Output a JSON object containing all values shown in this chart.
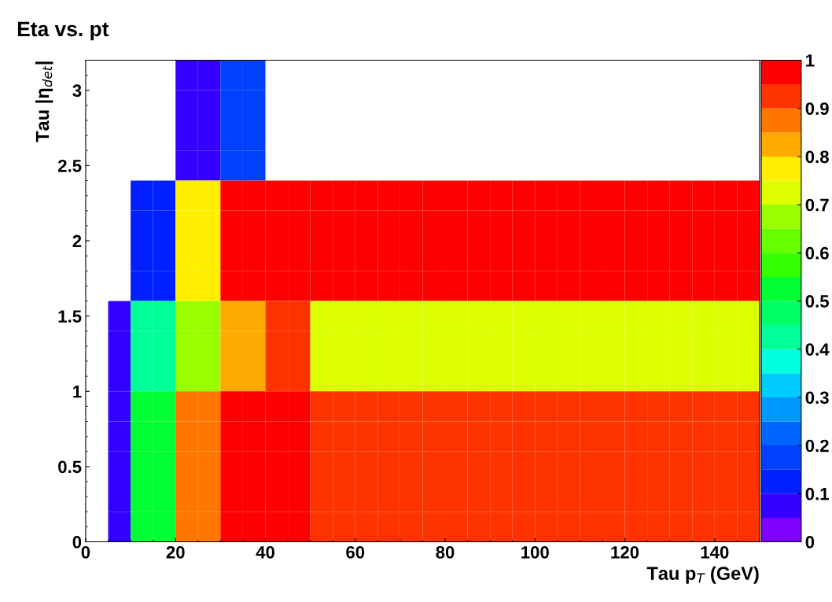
{
  "chart_data": {
    "type": "heatmap",
    "title": "Eta vs. pt",
    "xlabel": "Tau p$_{T}$ (GeV)",
    "ylabel": "Tau |η$_{det}$|",
    "x": [
      2.5,
      7.5,
      12.5,
      17.5,
      22.5,
      27.5,
      32.5,
      37.5,
      42.5,
      47.5,
      52.5,
      57.5,
      62.5,
      67.5,
      72.5,
      77.5,
      82.5,
      87.5,
      92.5,
      97.5,
      102.5,
      107.5,
      112.5,
      117.5,
      122.5,
      127.5,
      132.5,
      137.5,
      142.5,
      147.5
    ],
    "y": [
      3.1,
      2.9,
      2.7,
      2.5,
      2.3,
      2.1,
      1.9,
      1.7,
      1.5,
      1.3,
      1.1,
      0.9,
      0.7,
      0.5,
      0.3,
      0.1
    ],
    "cells": [
      [
        null,
        null,
        null,
        null,
        0.08,
        0.08,
        0.18,
        0.18,
        null,
        null,
        null,
        null,
        null,
        null,
        null,
        null,
        null,
        null,
        null,
        null,
        null,
        null,
        null,
        null,
        null,
        null,
        null,
        null,
        null,
        null
      ],
      [
        null,
        null,
        null,
        null,
        0.08,
        0.08,
        0.18,
        0.18,
        null,
        null,
        null,
        null,
        null,
        null,
        null,
        null,
        null,
        null,
        null,
        null,
        null,
        null,
        null,
        null,
        null,
        null,
        null,
        null,
        null,
        null
      ],
      [
        null,
        null,
        null,
        null,
        0.08,
        0.08,
        0.18,
        0.18,
        null,
        null,
        null,
        null,
        null,
        null,
        null,
        null,
        null,
        null,
        null,
        null,
        null,
        null,
        null,
        null,
        null,
        null,
        null,
        null,
        null,
        null
      ],
      [
        null,
        null,
        null,
        null,
        0.08,
        0.08,
        0.18,
        0.18,
        null,
        null,
        null,
        null,
        null,
        null,
        null,
        null,
        null,
        null,
        null,
        null,
        null,
        null,
        null,
        null,
        null,
        null,
        null,
        null,
        null,
        null
      ],
      [
        null,
        null,
        0.13,
        0.13,
        0.77,
        0.77,
        0.97,
        0.97,
        0.97,
        0.97,
        0.97,
        0.97,
        0.97,
        0.97,
        0.97,
        0.97,
        0.97,
        0.97,
        0.97,
        0.97,
        0.97,
        0.97,
        0.97,
        0.97,
        0.97,
        0.97,
        0.97,
        0.97,
        0.97,
        0.97
      ],
      [
        null,
        null,
        0.13,
        0.13,
        0.77,
        0.77,
        0.97,
        0.97,
        0.97,
        0.97,
        0.97,
        0.97,
        0.97,
        0.97,
        0.97,
        0.97,
        0.97,
        0.97,
        0.97,
        0.97,
        0.97,
        0.97,
        0.97,
        0.97,
        0.97,
        0.97,
        0.97,
        0.97,
        0.97,
        0.97
      ],
      [
        null,
        null,
        0.13,
        0.13,
        0.77,
        0.77,
        0.97,
        0.97,
        0.97,
        0.97,
        0.97,
        0.97,
        0.97,
        0.97,
        0.97,
        0.97,
        0.97,
        0.97,
        0.97,
        0.97,
        0.97,
        0.97,
        0.97,
        0.97,
        0.97,
        0.97,
        0.97,
        0.97,
        0.97,
        0.97
      ],
      [
        null,
        null,
        0.13,
        0.13,
        0.77,
        0.77,
        0.97,
        0.97,
        0.97,
        0.97,
        0.97,
        0.97,
        0.97,
        0.97,
        0.97,
        0.97,
        0.97,
        0.97,
        0.97,
        0.97,
        0.97,
        0.97,
        0.97,
        0.97,
        0.97,
        0.97,
        0.97,
        0.97,
        0.97,
        0.97
      ],
      [
        null,
        0.08,
        0.42,
        0.42,
        0.67,
        0.67,
        0.82,
        0.82,
        0.92,
        0.92,
        0.72,
        0.72,
        0.72,
        0.72,
        0.72,
        0.72,
        0.72,
        0.72,
        0.72,
        0.72,
        0.72,
        0.72,
        0.72,
        0.72,
        0.72,
        0.72,
        0.72,
        0.72,
        0.72,
        0.72
      ],
      [
        null,
        0.08,
        0.42,
        0.42,
        0.67,
        0.67,
        0.82,
        0.82,
        0.92,
        0.92,
        0.72,
        0.72,
        0.72,
        0.72,
        0.72,
        0.72,
        0.72,
        0.72,
        0.72,
        0.72,
        0.72,
        0.72,
        0.72,
        0.72,
        0.72,
        0.72,
        0.72,
        0.72,
        0.72,
        0.72
      ],
      [
        null,
        0.08,
        0.42,
        0.42,
        0.67,
        0.67,
        0.82,
        0.82,
        0.92,
        0.92,
        0.72,
        0.72,
        0.72,
        0.72,
        0.72,
        0.72,
        0.72,
        0.72,
        0.72,
        0.72,
        0.72,
        0.72,
        0.72,
        0.72,
        0.72,
        0.72,
        0.72,
        0.72,
        0.72,
        0.72
      ],
      [
        null,
        0.08,
        0.52,
        0.52,
        0.88,
        0.88,
        0.97,
        0.97,
        0.97,
        0.97,
        0.92,
        0.92,
        0.92,
        0.92,
        0.92,
        0.92,
        0.92,
        0.92,
        0.92,
        0.92,
        0.92,
        0.92,
        0.92,
        0.92,
        0.92,
        0.92,
        0.92,
        0.92,
        0.92,
        0.92
      ],
      [
        null,
        0.08,
        0.52,
        0.52,
        0.88,
        0.88,
        0.97,
        0.97,
        0.97,
        0.97,
        0.92,
        0.92,
        0.92,
        0.92,
        0.92,
        0.92,
        0.92,
        0.92,
        0.92,
        0.92,
        0.92,
        0.92,
        0.92,
        0.92,
        0.92,
        0.92,
        0.92,
        0.92,
        0.92,
        0.92
      ],
      [
        null,
        0.08,
        0.52,
        0.52,
        0.88,
        0.88,
        0.97,
        0.97,
        0.97,
        0.97,
        0.92,
        0.92,
        0.92,
        0.92,
        0.92,
        0.92,
        0.92,
        0.92,
        0.92,
        0.92,
        0.92,
        0.92,
        0.92,
        0.92,
        0.92,
        0.92,
        0.92,
        0.92,
        0.92,
        0.92
      ],
      [
        null,
        0.08,
        0.52,
        0.52,
        0.88,
        0.88,
        0.97,
        0.97,
        0.97,
        0.97,
        0.92,
        0.92,
        0.92,
        0.92,
        0.92,
        0.92,
        0.92,
        0.92,
        0.92,
        0.92,
        0.92,
        0.92,
        0.92,
        0.92,
        0.92,
        0.92,
        0.92,
        0.92,
        0.92,
        0.92
      ],
      [
        null,
        0.08,
        0.52,
        0.52,
        0.88,
        0.88,
        0.97,
        0.97,
        0.97,
        0.97,
        0.92,
        0.92,
        0.92,
        0.92,
        0.92,
        0.92,
        0.92,
        0.92,
        0.92,
        0.92,
        0.92,
        0.92,
        0.92,
        0.92,
        0.92,
        0.92,
        0.92,
        0.92,
        0.92,
        0.92
      ]
    ],
    "colors": [
      "#8000ff",
      "#3300ff",
      "#0020ff",
      "#0040ff",
      "#0066ff",
      "#0099ff",
      "#00ccff",
      "#00ffdd",
      "#00ff99",
      "#00ff66",
      "#00ff33",
      "#33ff00",
      "#66ff00",
      "#99ff00",
      "#ddff00",
      "#ffee00",
      "#ffaa00",
      "#ff7700",
      "#ff3300",
      "#ff0000"
    ],
    "xlim": [
      0,
      150
    ],
    "xticks": [
      0,
      20,
      40,
      60,
      80,
      100,
      120,
      140
    ],
    "ylim": [
      0,
      3.2
    ],
    "yticks": [
      0,
      0.5,
      1,
      1.5,
      2,
      2.5,
      3
    ],
    "clim": [
      0,
      1
    ],
    "cticks": [
      0,
      0.1,
      0.2,
      0.3,
      0.4,
      0.5,
      0.6,
      0.7,
      0.8,
      0.9,
      1
    ],
    "grid": false
  }
}
